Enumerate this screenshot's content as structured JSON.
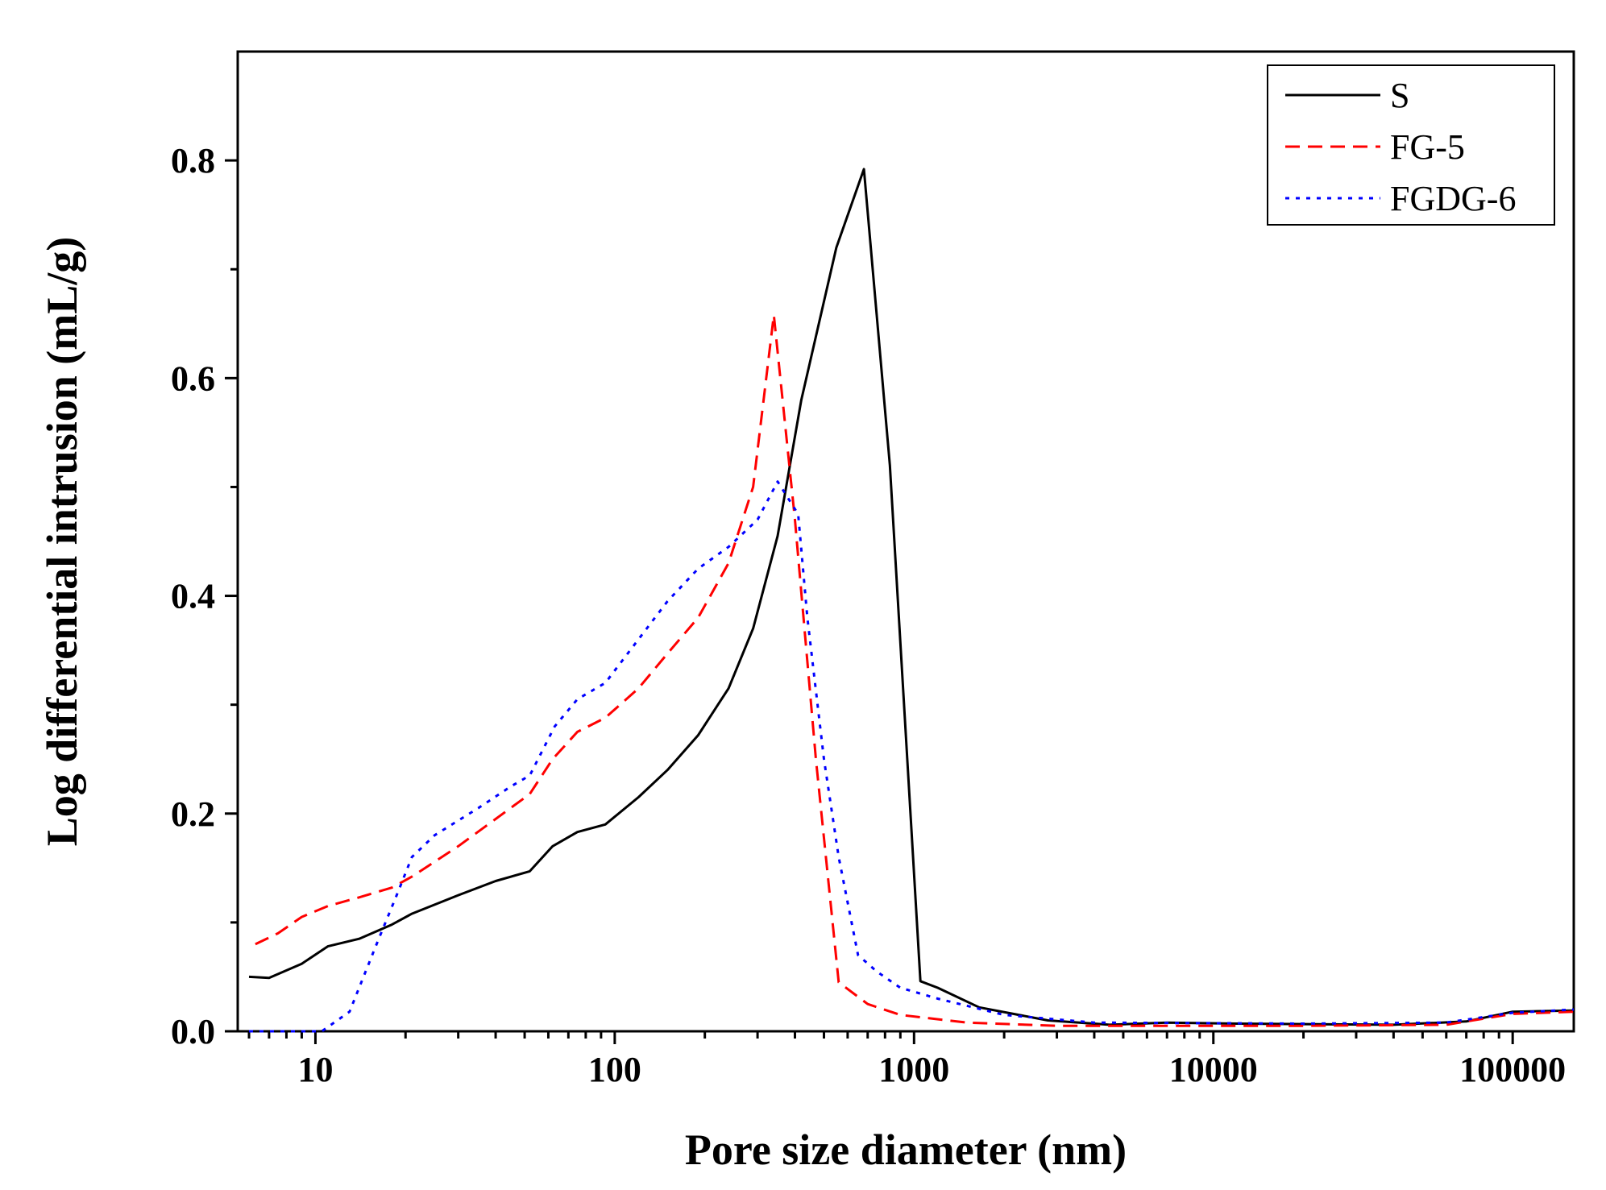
{
  "chart_data": {
    "type": "line",
    "title": "",
    "xlabel": "Pore size diameter (nm)",
    "ylabel": "Log differential intrusion (mL/g)",
    "xscale": "log",
    "xlim": [
      5.5,
      160000
    ],
    "ylim": [
      0,
      0.9
    ],
    "x_major_ticks": [
      10,
      100,
      1000,
      10000,
      100000
    ],
    "x_tick_labels": [
      "10",
      "100",
      "1000",
      "10000",
      "100000"
    ],
    "y_major_ticks": [
      0,
      0.2,
      0.4,
      0.6,
      0.8
    ],
    "y_tick_labels": [
      "0.0",
      "0.2",
      "0.4",
      "0.6",
      "0.8"
    ],
    "y_minor_ticks": [
      0.1,
      0.3,
      0.5,
      0.7
    ],
    "grid": false,
    "legend_position": "top-right",
    "series": [
      {
        "name": "S",
        "color": "#000000",
        "dash": "solid",
        "points": [
          [
            6,
            0.05
          ],
          [
            7,
            0.049
          ],
          [
            9,
            0.062
          ],
          [
            11,
            0.078
          ],
          [
            14,
            0.085
          ],
          [
            18,
            0.098
          ],
          [
            21,
            0.108
          ],
          [
            30,
            0.125
          ],
          [
            40,
            0.138
          ],
          [
            52,
            0.147
          ],
          [
            62,
            0.17
          ],
          [
            75,
            0.183
          ],
          [
            93,
            0.19
          ],
          [
            120,
            0.215
          ],
          [
            150,
            0.24
          ],
          [
            190,
            0.272
          ],
          [
            240,
            0.315
          ],
          [
            290,
            0.37
          ],
          [
            350,
            0.455
          ],
          [
            420,
            0.58
          ],
          [
            550,
            0.72
          ],
          [
            680,
            0.792
          ],
          [
            830,
            0.52
          ],
          [
            1050,
            0.046
          ],
          [
            1200,
            0.04
          ],
          [
            1650,
            0.022
          ],
          [
            2800,
            0.01
          ],
          [
            4500,
            0.006
          ],
          [
            7000,
            0.008
          ],
          [
            12000,
            0.007
          ],
          [
            40000,
            0.006
          ],
          [
            70000,
            0.009
          ],
          [
            100000,
            0.018
          ],
          [
            160000,
            0.019
          ]
        ]
      },
      {
        "name": "FG-5",
        "color": "#ff0000",
        "dash": "dashed",
        "points": [
          [
            6.3,
            0.08
          ],
          [
            7.5,
            0.09
          ],
          [
            9,
            0.105
          ],
          [
            11,
            0.115
          ],
          [
            14,
            0.123
          ],
          [
            18,
            0.132
          ],
          [
            21,
            0.142
          ],
          [
            30,
            0.17
          ],
          [
            40,
            0.195
          ],
          [
            52,
            0.218
          ],
          [
            62,
            0.25
          ],
          [
            75,
            0.275
          ],
          [
            93,
            0.288
          ],
          [
            120,
            0.315
          ],
          [
            150,
            0.347
          ],
          [
            190,
            0.38
          ],
          [
            240,
            0.43
          ],
          [
            290,
            0.5
          ],
          [
            340,
            0.658
          ],
          [
            400,
            0.47
          ],
          [
            470,
            0.25
          ],
          [
            560,
            0.045
          ],
          [
            700,
            0.025
          ],
          [
            900,
            0.015
          ],
          [
            1500,
            0.008
          ],
          [
            3000,
            0.005
          ],
          [
            8000,
            0.005
          ],
          [
            20000,
            0.005
          ],
          [
            60000,
            0.006
          ],
          [
            100000,
            0.016
          ],
          [
            160000,
            0.018
          ]
        ]
      },
      {
        "name": "FGDG-6",
        "color": "#0000ff",
        "dash": "dotted",
        "points": [
          [
            6,
            0.0
          ],
          [
            10.5,
            0.0
          ],
          [
            13,
            0.018
          ],
          [
            16,
            0.08
          ],
          [
            19,
            0.13
          ],
          [
            21,
            0.16
          ],
          [
            25,
            0.18
          ],
          [
            35,
            0.205
          ],
          [
            45,
            0.225
          ],
          [
            52,
            0.235
          ],
          [
            63,
            0.28
          ],
          [
            75,
            0.305
          ],
          [
            93,
            0.32
          ],
          [
            120,
            0.36
          ],
          [
            150,
            0.395
          ],
          [
            190,
            0.425
          ],
          [
            240,
            0.445
          ],
          [
            300,
            0.47
          ],
          [
            350,
            0.505
          ],
          [
            410,
            0.475
          ],
          [
            440,
            0.38
          ],
          [
            500,
            0.25
          ],
          [
            560,
            0.16
          ],
          [
            650,
            0.07
          ],
          [
            750,
            0.055
          ],
          [
            900,
            0.04
          ],
          [
            1200,
            0.03
          ],
          [
            2000,
            0.015
          ],
          [
            4000,
            0.008
          ],
          [
            20000,
            0.007
          ],
          [
            60000,
            0.008
          ],
          [
            100000,
            0.017
          ],
          [
            160000,
            0.02
          ]
        ]
      }
    ]
  }
}
